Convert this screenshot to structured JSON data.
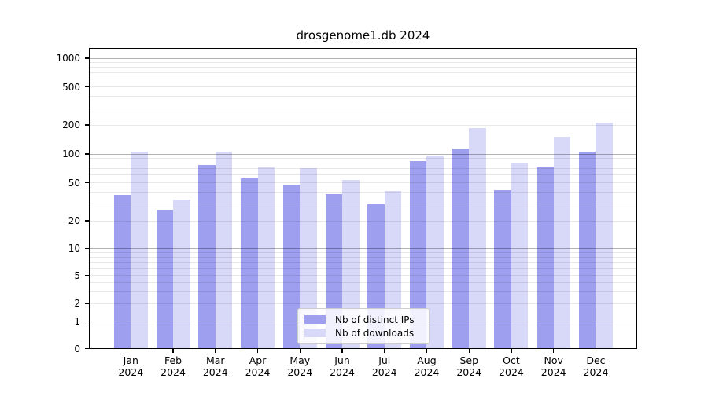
{
  "title": "drosgenome1.db 2024",
  "chart_data": {
    "type": "bar",
    "title": "drosgenome1.db 2024",
    "categories": [
      "Jan",
      "Feb",
      "Mar",
      "Apr",
      "May",
      "Jun",
      "Jul",
      "Aug",
      "Sep",
      "Oct",
      "Nov",
      "Dec"
    ],
    "category_year": "2024",
    "series": [
      {
        "name": "Nb of distinct IPs",
        "color": "#9f9fef",
        "values": [
          37,
          26,
          76,
          55,
          48,
          38,
          30,
          85,
          114,
          42,
          73,
          106
        ]
      },
      {
        "name": "Nb of downloads",
        "color": "#d8d8f8",
        "values": [
          105,
          33,
          105,
          72,
          71,
          53,
          41,
          96,
          187,
          80,
          150,
          210
        ]
      }
    ],
    "yscale": "symlog",
    "yticks": [
      0,
      1,
      2,
      5,
      10,
      20,
      50,
      100,
      200,
      500,
      1000
    ],
    "ylim": [
      0,
      1000
    ],
    "grid": true,
    "legend_position": "lower center"
  },
  "colors": {
    "distinct_ips": "#9f9fef",
    "downloads": "#d8d8f8",
    "grid_major": "rgba(0,0,0,0.30)",
    "grid_minor": "rgba(0,0,0,0.09)",
    "axis": "#000000",
    "background": "#ffffff"
  }
}
